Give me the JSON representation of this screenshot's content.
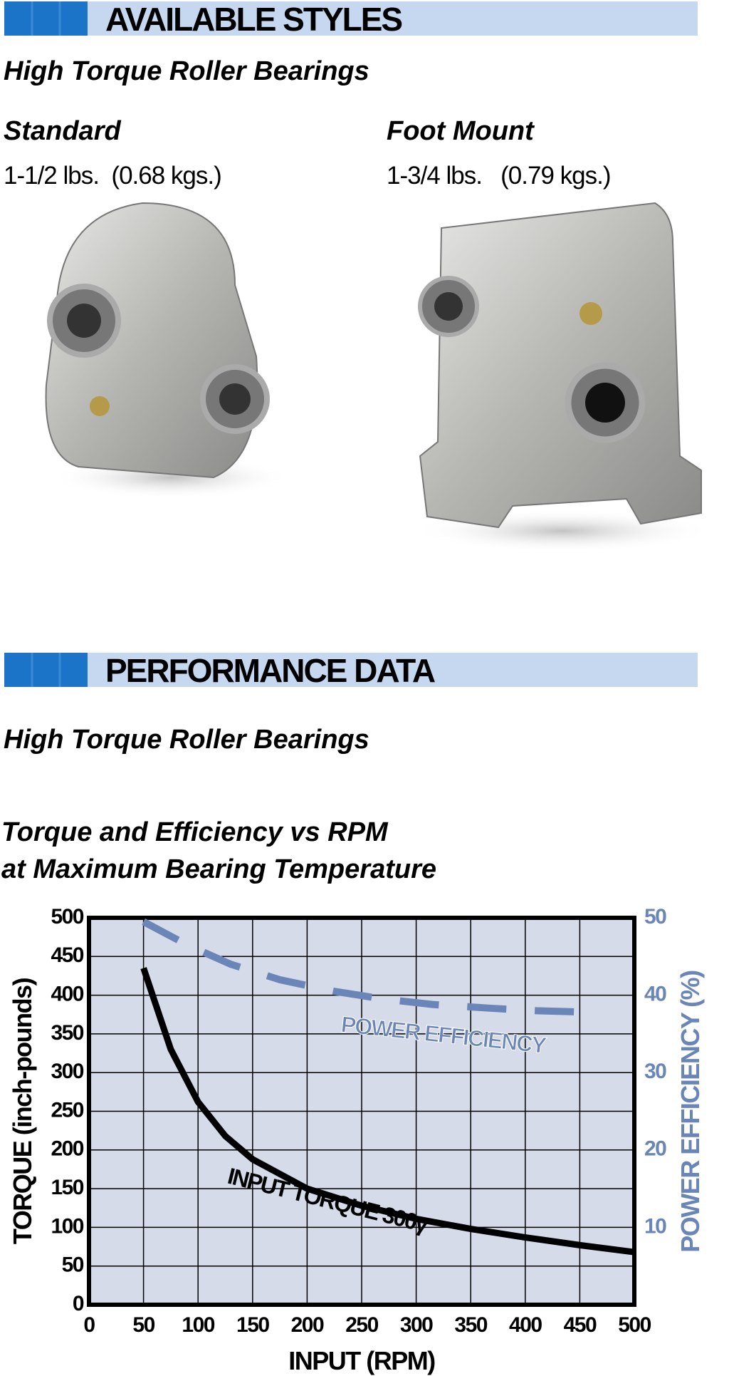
{
  "header1": "AVAILABLE STYLES",
  "subtitle1": "High Torque Roller Bearings",
  "styles": [
    {
      "name": "Standard",
      "weight": "1-1/2 lbs.  (0.68 kgs.)"
    },
    {
      "name": "Foot Mount",
      "weight": "1-3/4 lbs.   (0.79 kgs.)"
    }
  ],
  "header2": "PERFORMANCE DATA",
  "subtitle2": "High Torque Roller Bearings",
  "chart_data": {
    "type": "line",
    "title": [
      "Torque and Efficiency vs RPM",
      "at Maximum Bearing Temperature"
    ],
    "xlabel": "INPUT (RPM)",
    "ylabel": "TORQUE (inch-pounds)",
    "y2label": "POWER EFFICIENCY (%)",
    "xlim": [
      0,
      500
    ],
    "xticks": [
      0,
      50,
      100,
      150,
      200,
      250,
      300,
      350,
      400,
      450,
      500
    ],
    "ylim": [
      0,
      500
    ],
    "yticks": [
      0,
      50,
      100,
      150,
      200,
      250,
      300,
      350,
      400,
      450,
      500
    ],
    "y2lim": [
      0,
      50
    ],
    "y2ticks": [
      10,
      20,
      30,
      40,
      50
    ],
    "grid": true,
    "series": [
      {
        "name": "INPUT TORQUE 300γ",
        "color": "#000000",
        "x": [
          50,
          75,
          100,
          125,
          150,
          200,
          250,
          300,
          350,
          400,
          450,
          500
        ],
        "values": [
          435,
          330,
          262,
          218,
          188,
          150,
          128,
          111,
          98,
          87,
          77,
          68
        ]
      },
      {
        "name": "POWER EFFICIENCY",
        "color": "#6a86b8",
        "axis": "y2",
        "dashed": true,
        "x": [
          50,
          90,
          130,
          175,
          225,
          270,
          315,
          370,
          410,
          460
        ],
        "values": [
          49.5,
          46.5,
          44,
          42,
          40.5,
          39.5,
          38.8,
          38.3,
          38,
          37.8
        ]
      }
    ]
  }
}
